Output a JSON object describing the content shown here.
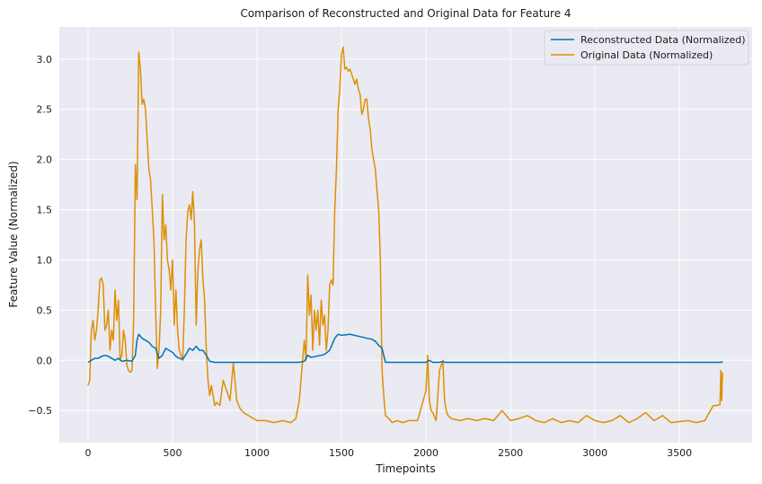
{
  "chart_data": {
    "type": "line",
    "title": "Comparison of Reconstructed and Original Data for Feature 4",
    "xlabel": "Timepoints",
    "ylabel": "Feature Value (Normalized)",
    "xlim": [
      -170,
      3930
    ],
    "ylim": [
      -0.82,
      3.32
    ],
    "xticks": [
      0,
      500,
      1000,
      1500,
      2000,
      2500,
      3000,
      3500
    ],
    "xtick_labels": [
      "0",
      "500",
      "1000",
      "1500",
      "2000",
      "2500",
      "3000",
      "3500"
    ],
    "yticks": [
      -0.5,
      0.0,
      0.5,
      1.0,
      1.5,
      2.0,
      2.5,
      3.0
    ],
    "ytick_labels": [
      "−0.5",
      "0.0",
      "0.5",
      "1.0",
      "1.5",
      "2.0",
      "2.5",
      "3.0"
    ],
    "grid": true,
    "legend_position": "upper-right",
    "series": [
      {
        "name": "Reconstructed Data (Normalized)",
        "color": "#0173b2",
        "x": [
          0,
          20,
          40,
          60,
          80,
          100,
          120,
          140,
          160,
          180,
          200,
          230,
          260,
          280,
          290,
          300,
          320,
          340,
          360,
          380,
          400,
          420,
          440,
          460,
          480,
          500,
          520,
          540,
          560,
          580,
          600,
          620,
          640,
          660,
          680,
          700,
          720,
          750,
          800,
          900,
          1000,
          1100,
          1200,
          1250,
          1280,
          1300,
          1320,
          1350,
          1380,
          1400,
          1430,
          1460,
          1480,
          1500,
          1550,
          1600,
          1650,
          1680,
          1700,
          1720,
          1740,
          1760,
          1800,
          1900,
          2000,
          2020,
          2040,
          2060,
          2080,
          2100,
          2110,
          2120,
          2140,
          2200,
          2500,
          3000,
          3500,
          3740,
          3750,
          3755
        ],
        "y": [
          -0.02,
          0.0,
          0.02,
          0.02,
          0.04,
          0.05,
          0.04,
          0.02,
          0.0,
          0.02,
          -0.01,
          0.0,
          -0.01,
          0.05,
          0.2,
          0.26,
          0.22,
          0.2,
          0.18,
          0.14,
          0.12,
          0.02,
          0.05,
          0.12,
          0.1,
          0.08,
          0.04,
          0.02,
          0.01,
          0.06,
          0.12,
          0.1,
          0.14,
          0.1,
          0.1,
          0.05,
          -0.01,
          -0.02,
          -0.02,
          -0.02,
          -0.02,
          -0.02,
          -0.02,
          -0.02,
          -0.01,
          0.05,
          0.03,
          0.04,
          0.05,
          0.06,
          0.1,
          0.22,
          0.26,
          0.25,
          0.26,
          0.24,
          0.22,
          0.21,
          0.19,
          0.15,
          0.12,
          -0.02,
          -0.02,
          -0.02,
          -0.02,
          0.0,
          -0.02,
          -0.02,
          -0.02,
          -0.01,
          -0.02,
          -0.02,
          -0.02,
          -0.02,
          -0.02,
          -0.02,
          -0.02,
          -0.02,
          -0.02,
          -0.01
        ]
      },
      {
        "name": "Original Data (Normalized)",
        "color": "#de8f05",
        "x": [
          0,
          10,
          20,
          30,
          40,
          50,
          60,
          70,
          80,
          90,
          100,
          110,
          120,
          130,
          140,
          150,
          160,
          170,
          180,
          190,
          200,
          210,
          220,
          230,
          240,
          250,
          260,
          270,
          280,
          290,
          300,
          310,
          320,
          330,
          340,
          350,
          360,
          370,
          380,
          390,
          400,
          410,
          420,
          430,
          440,
          450,
          460,
          470,
          480,
          490,
          500,
          510,
          520,
          530,
          540,
          550,
          560,
          570,
          580,
          590,
          600,
          610,
          620,
          630,
          640,
          650,
          660,
          670,
          680,
          690,
          700,
          710,
          720,
          730,
          740,
          750,
          760,
          780,
          800,
          820,
          840,
          860,
          880,
          900,
          920,
          950,
          1000,
          1050,
          1100,
          1150,
          1200,
          1230,
          1250,
          1260,
          1280,
          1290,
          1300,
          1310,
          1320,
          1330,
          1340,
          1350,
          1360,
          1370,
          1380,
          1390,
          1400,
          1410,
          1420,
          1430,
          1440,
          1450,
          1460,
          1470,
          1480,
          1490,
          1500,
          1510,
          1520,
          1530,
          1540,
          1550,
          1560,
          1570,
          1580,
          1590,
          1600,
          1610,
          1620,
          1630,
          1640,
          1650,
          1660,
          1670,
          1680,
          1690,
          1700,
          1710,
          1720,
          1730,
          1740,
          1750,
          1760,
          1780,
          1800,
          1830,
          1860,
          1900,
          1950,
          2000,
          2010,
          2020,
          2030,
          2040,
          2060,
          2080,
          2100,
          2110,
          2120,
          2130,
          2150,
          2200,
          2250,
          2300,
          2350,
          2400,
          2450,
          2500,
          2550,
          2600,
          2650,
          2700,
          2750,
          2800,
          2850,
          2900,
          2950,
          3000,
          3050,
          3100,
          3150,
          3200,
          3250,
          3300,
          3350,
          3400,
          3450,
          3500,
          3550,
          3600,
          3650,
          3700,
          3720,
          3740,
          3745,
          3750,
          3755
        ],
        "y": [
          -0.25,
          -0.2,
          0.3,
          0.4,
          0.2,
          0.3,
          0.5,
          0.8,
          0.82,
          0.75,
          0.3,
          0.35,
          0.5,
          0.1,
          0.3,
          0.2,
          0.7,
          0.4,
          0.6,
          0.0,
          0.05,
          0.3,
          0.2,
          -0.05,
          -0.1,
          -0.12,
          -0.1,
          0.4,
          1.95,
          1.6,
          3.07,
          2.9,
          2.55,
          2.6,
          2.5,
          2.2,
          1.9,
          1.8,
          1.5,
          1.2,
          0.5,
          -0.08,
          0.1,
          0.5,
          1.65,
          1.2,
          1.35,
          1.0,
          0.9,
          0.7,
          1.0,
          0.35,
          0.7,
          0.3,
          0.1,
          0.05,
          0.0,
          0.5,
          1.2,
          1.48,
          1.55,
          1.4,
          1.68,
          1.35,
          0.35,
          0.9,
          1.1,
          1.2,
          0.8,
          0.6,
          0.1,
          -0.2,
          -0.35,
          -0.25,
          -0.35,
          -0.45,
          -0.42,
          -0.45,
          -0.2,
          -0.3,
          -0.4,
          -0.02,
          -0.4,
          -0.48,
          -0.52,
          -0.55,
          -0.6,
          -0.6,
          -0.62,
          -0.6,
          -0.62,
          -0.58,
          -0.4,
          -0.2,
          0.2,
          0.0,
          0.85,
          0.45,
          0.65,
          0.1,
          0.5,
          0.3,
          0.5,
          0.15,
          0.6,
          0.35,
          0.45,
          0.1,
          0.3,
          0.75,
          0.8,
          0.75,
          1.5,
          1.9,
          2.5,
          2.7,
          3.05,
          3.12,
          2.9,
          2.92,
          2.88,
          2.9,
          2.85,
          2.8,
          2.75,
          2.8,
          2.7,
          2.65,
          2.45,
          2.5,
          2.6,
          2.6,
          2.4,
          2.3,
          2.1,
          2.0,
          1.9,
          1.7,
          1.5,
          1.0,
          -0.1,
          -0.35,
          -0.55,
          -0.58,
          -0.62,
          -0.6,
          -0.62,
          -0.6,
          -0.6,
          -0.3,
          0.05,
          -0.4,
          -0.5,
          -0.52,
          -0.6,
          -0.1,
          0.0,
          -0.4,
          -0.5,
          -0.55,
          -0.58,
          -0.6,
          -0.58,
          -0.6,
          -0.58,
          -0.6,
          -0.5,
          -0.6,
          -0.58,
          -0.55,
          -0.6,
          -0.62,
          -0.58,
          -0.62,
          -0.6,
          -0.62,
          -0.55,
          -0.6,
          -0.62,
          -0.6,
          -0.55,
          -0.62,
          -0.58,
          -0.52,
          -0.6,
          -0.55,
          -0.62,
          -0.61,
          -0.6,
          -0.62,
          -0.6,
          -0.45,
          -0.45,
          -0.44,
          -0.1,
          -0.4,
          -0.12
        ]
      }
    ]
  }
}
